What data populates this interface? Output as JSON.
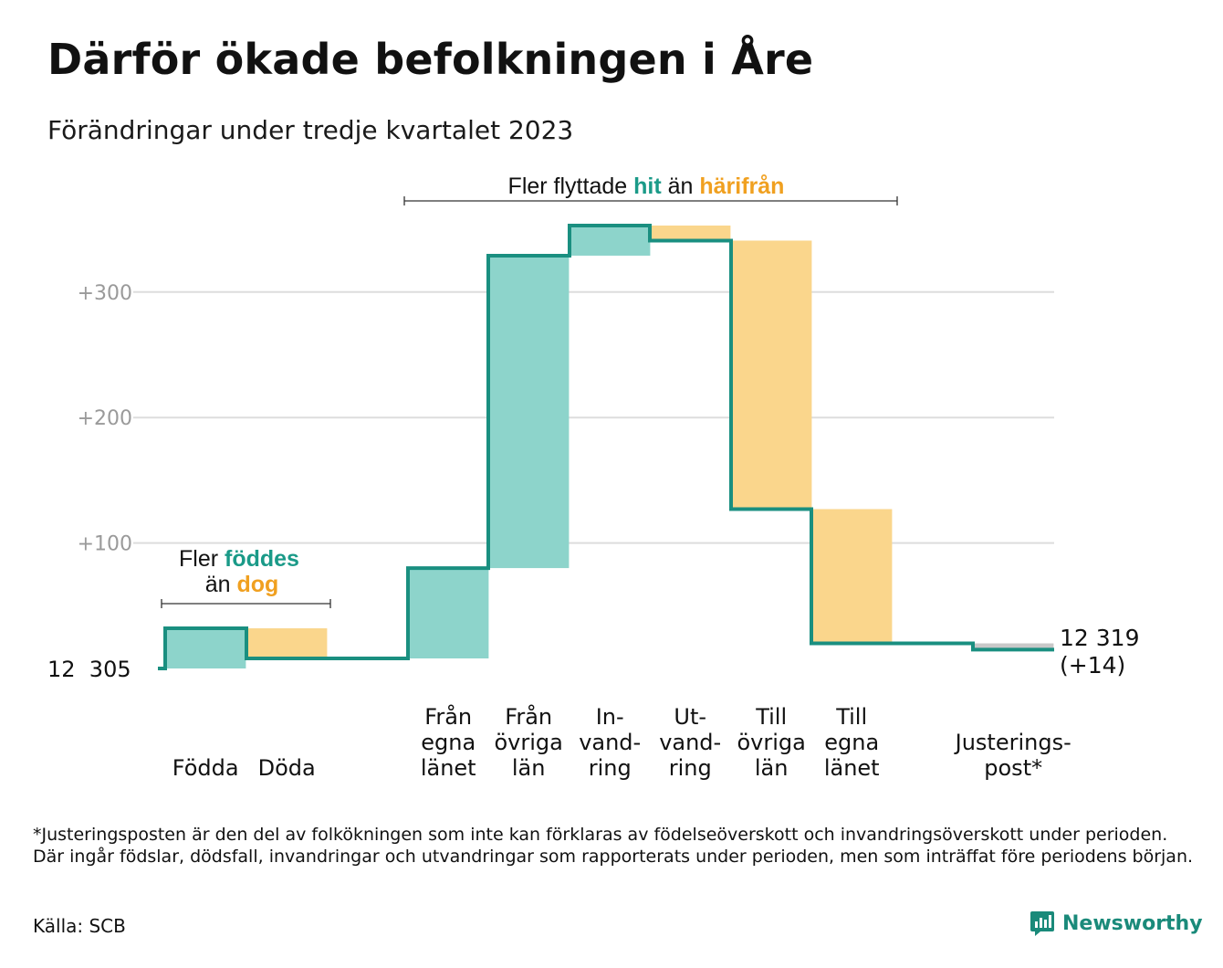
{
  "title": "Därför ökade befolkningen i Åre",
  "subtitle": "Förändringar under tredje kvartalet 2023",
  "colors": {
    "increase_fill": "#8dd4cb",
    "decrease_fill": "#fad68c",
    "line": "#1a8f80",
    "adjustment_fill": "#c8c8c8",
    "grid": "#dddddd",
    "tick_text": "#9a9a9a",
    "teal_text": "#1a9a88",
    "orange_text": "#f0a020"
  },
  "annotations": {
    "births": {
      "line1_prefix": "Fler ",
      "line1_highlight": "föddes",
      "line2_prefix": "än ",
      "line2_highlight": "dog"
    },
    "migration": {
      "prefix": "Fler flyttade ",
      "highlight1": "hit",
      "middle": " än ",
      "highlight2": "härifrån"
    }
  },
  "chart_data": {
    "type": "waterfall",
    "start_label": "12  305",
    "end_label_line1": "12 319",
    "end_label_line2": "(+14)",
    "start_value": 12305,
    "end_value": 12319,
    "ytick_labels": [
      "+100",
      "+200",
      "+300"
    ],
    "ylim": [
      0,
      360
    ],
    "grid": true,
    "steps": [
      {
        "label_lines": [
          "Födda"
        ],
        "change": 32,
        "kind": "increase"
      },
      {
        "label_lines": [
          "Döda"
        ],
        "change": -24,
        "kind": "decrease"
      },
      {
        "label_lines": [
          "Från",
          "egna",
          "länet"
        ],
        "change": 72,
        "kind": "increase"
      },
      {
        "label_lines": [
          "Från",
          "övriga",
          "län"
        ],
        "change": 249,
        "kind": "increase"
      },
      {
        "label_lines": [
          "In-",
          "vand-",
          "ring"
        ],
        "change": 24,
        "kind": "increase"
      },
      {
        "label_lines": [
          "Ut-",
          "vand-",
          "ring"
        ],
        "change": -12,
        "kind": "decrease"
      },
      {
        "label_lines": [
          "Till",
          "övriga",
          "län"
        ],
        "change": -214,
        "kind": "decrease"
      },
      {
        "label_lines": [
          "Till",
          "egna",
          "länet"
        ],
        "change": -107,
        "kind": "decrease"
      },
      {
        "label_lines": [
          "Justerings-",
          "post*"
        ],
        "change": -5,
        "kind": "adjustment"
      }
    ]
  },
  "footnote": "*Justeringsposten är den del av folkökningen som inte kan förklaras av födelseöverskott och invandringsöverskott under perioden. Där ingår födslar, dödsfall, invandringar och utvandringar som rapporterats under perioden, men som inträffat före periodens början.",
  "source": "Källa: SCB",
  "brand": {
    "name": "Newsworthy",
    "icon": "bar-chart-logo-icon"
  }
}
